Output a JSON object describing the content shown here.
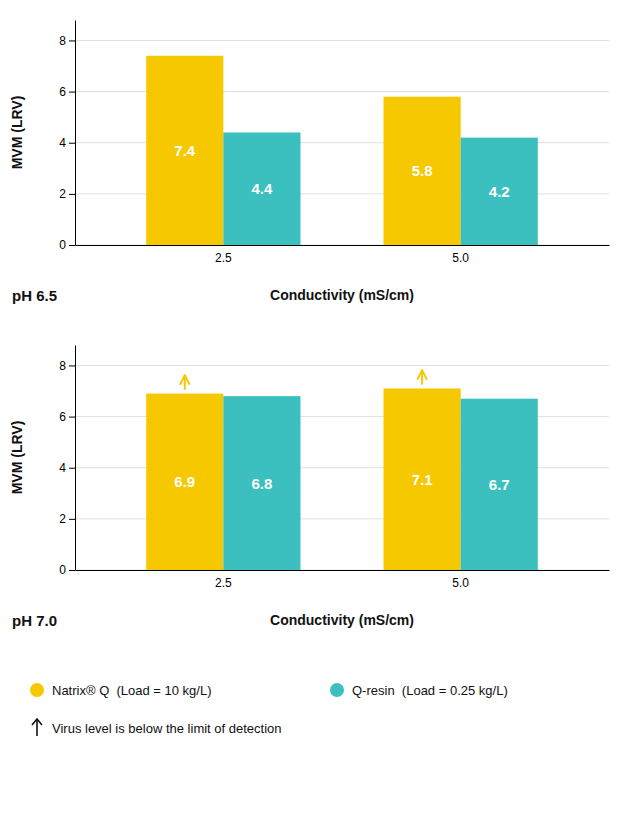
{
  "chart_data": [
    {
      "type": "bar",
      "title": "pH 6.5",
      "xlabel": "Conductivity (mS/cm)",
      "ylabel": "MVM (LRV)",
      "categories": [
        "2.5",
        "5.0"
      ],
      "series": [
        {
          "name": "Natrix® Q  (Load = 10 kg/L)",
          "color": "#F5C800",
          "values": [
            7.4,
            5.8
          ],
          "below_detection_limit": [
            false,
            false
          ]
        },
        {
          "name": "Q-resin  (Load = 0.25 kg/L)",
          "color": "#3BBFBF",
          "values": [
            4.4,
            4.2
          ]
        }
      ],
      "ylim": [
        0,
        8.8
      ],
      "yticks": [
        0,
        2,
        4,
        6,
        8
      ],
      "grid": true,
      "data_labels": true
    },
    {
      "type": "bar",
      "title": "pH 7.0",
      "xlabel": "Conductivity (mS/cm)",
      "ylabel": "MVM (LRV)",
      "categories": [
        "2.5",
        "5.0"
      ],
      "series": [
        {
          "color": "#F5C800",
          "values": [
            6.9,
            7.1
          ],
          "below_detection_limit": [
            true,
            true
          ]
        },
        {
          "color": "#3BBFBF",
          "values": [
            6.8,
            6.7
          ]
        }
      ],
      "ylim": [
        0,
        8.8
      ],
      "yticks": [
        0,
        2,
        4,
        6,
        8
      ],
      "grid": true,
      "data_labels": true,
      "annotation": "Virus level is below the limit of detection"
    }
  ]
}
